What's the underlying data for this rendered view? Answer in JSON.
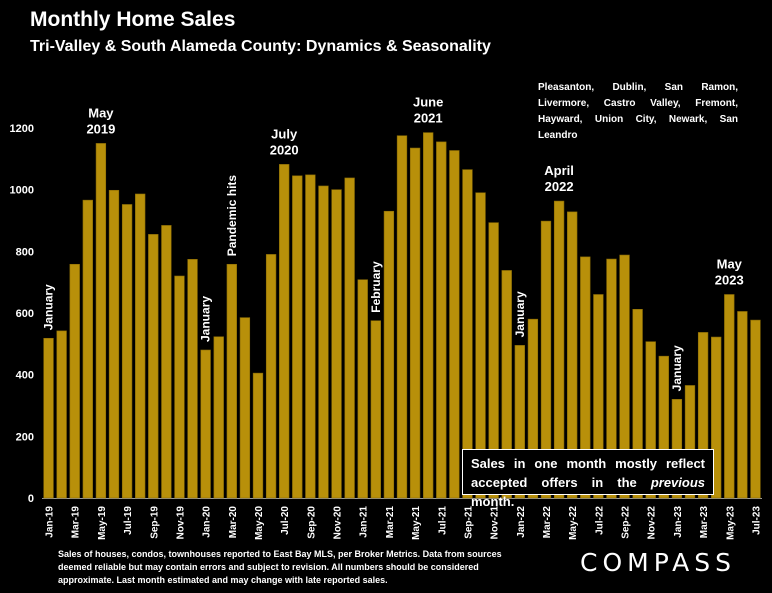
{
  "header": {
    "title": "Monthly Home Sales",
    "subtitle": "Tri-Valley & South Alameda County: Dynamics & Seasonality"
  },
  "region_lines": [
    "Pleasanton, Dublin, San Ramon,",
    "Livermore, Castro Valley, Fremont,",
    "Hayward, Union City, Newark, San Leandro"
  ],
  "callout": {
    "before": "Sales in one month mostly reflect accepted offers in the ",
    "emphasis": "previous",
    "after": " month."
  },
  "footnote": "Sales of houses, condos, townhouses reported to East Bay MLS, per Broker Metrics. Data from sources deemed reliable but may contain errors and subject to revision. All numbers should be considered approximate.  Last month estimated and may change with late reported sales.",
  "logo": "COMPASS",
  "colors": {
    "bar": "#B8900A",
    "bar_stroke": "#8A6B05",
    "background": "#000000",
    "text": "#FFFFFF"
  },
  "chart_data": {
    "type": "bar",
    "title": "Monthly Home Sales",
    "subtitle": "Tri-Valley & South Alameda County: Dynamics & Seasonality",
    "xlabel": "",
    "ylabel": "",
    "ylim": [
      0,
      1200
    ],
    "yticks": [
      0,
      200,
      400,
      600,
      800,
      1000,
      1200
    ],
    "grid": false,
    "x_tick_labels": [
      "Jan-19",
      "Mar-19",
      "May-19",
      "Jul-19",
      "Sep-19",
      "Nov-19",
      "Jan-20",
      "Mar-20",
      "May-20",
      "Jul-20",
      "Sep-20",
      "Nov-20",
      "Jan-21",
      "Mar-21",
      "May-21",
      "Jul-21",
      "Sep-21",
      "Nov-21",
      "Jan-22",
      "Mar-22",
      "May-22",
      "Jul-22",
      "Sep-22",
      "Nov-22",
      "Jan-23",
      "Mar-23",
      "May-23",
      "Jul-23"
    ],
    "categories": [
      "Jan-19",
      "Feb-19",
      "Mar-19",
      "Apr-19",
      "May-19",
      "Jun-19",
      "Jul-19",
      "Aug-19",
      "Sep-19",
      "Oct-19",
      "Nov-19",
      "Dec-19",
      "Jan-20",
      "Feb-20",
      "Mar-20",
      "Apr-20",
      "May-20",
      "Jun-20",
      "Jul-20",
      "Aug-20",
      "Sep-20",
      "Oct-20",
      "Nov-20",
      "Dec-20",
      "Jan-21",
      "Feb-21",
      "Mar-21",
      "Apr-21",
      "May-21",
      "Jun-21",
      "Jul-21",
      "Aug-21",
      "Sep-21",
      "Oct-21",
      "Nov-21",
      "Dec-21",
      "Jan-22",
      "Feb-22",
      "Mar-22",
      "Apr-22",
      "May-22",
      "Jun-22",
      "Jul-22",
      "Aug-22",
      "Sep-22",
      "Oct-22",
      "Nov-22",
      "Dec-22",
      "Jan-23",
      "Feb-23",
      "Mar-23",
      "Apr-23",
      "May-23",
      "Jun-23",
      "Jul-23"
    ],
    "values": [
      518,
      542,
      758,
      966,
      1150,
      998,
      952,
      986,
      855,
      884,
      720,
      774,
      480,
      523,
      758,
      585,
      405,
      790,
      1082,
      1045,
      1048,
      1012,
      1000,
      1038,
      708,
      575,
      930,
      1175,
      1135,
      1185,
      1155,
      1127,
      1065,
      990,
      893,
      738,
      495,
      580,
      898,
      963,
      928,
      782,
      660,
      775,
      788,
      612,
      507,
      460,
      320,
      365,
      537,
      522,
      660,
      605,
      577
    ],
    "annotations": [
      {
        "text": "January",
        "month": "Jan-19",
        "orientation": "vertical"
      },
      {
        "text": "May\n2019",
        "month": "May-19",
        "orientation": "horizontal"
      },
      {
        "text": "January",
        "month": "Jan-20",
        "orientation": "vertical"
      },
      {
        "text": "Pandemic hits",
        "month": "Mar-20",
        "orientation": "vertical"
      },
      {
        "text": "July\n2020",
        "month": "Jul-20",
        "orientation": "horizontal"
      },
      {
        "text": "February",
        "month": "Feb-21",
        "orientation": "vertical"
      },
      {
        "text": "June\n2021",
        "month": "Jun-21",
        "orientation": "horizontal"
      },
      {
        "text": "January",
        "month": "Jan-22",
        "orientation": "vertical"
      },
      {
        "text": "April\n2022",
        "month": "Apr-22",
        "orientation": "horizontal"
      },
      {
        "text": "January",
        "month": "Jan-23",
        "orientation": "vertical"
      },
      {
        "text": "May\n2023",
        "month": "May-23",
        "orientation": "horizontal"
      }
    ]
  }
}
